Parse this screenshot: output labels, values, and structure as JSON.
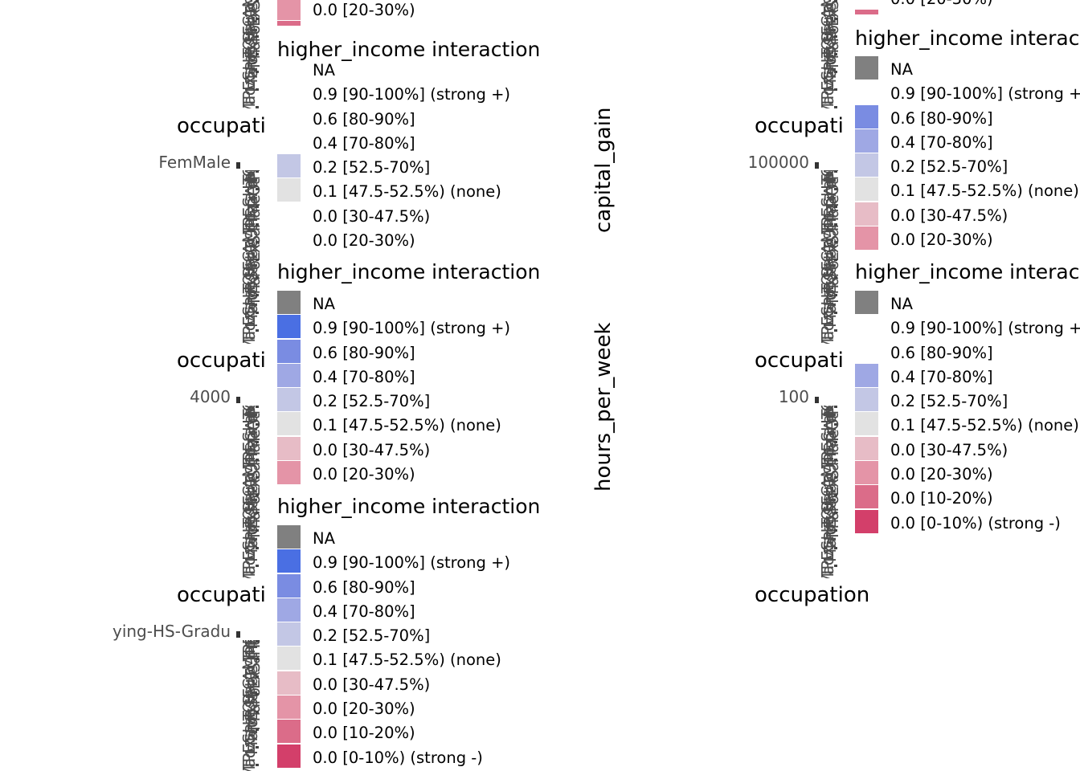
{
  "chart_data": {
    "type": "heatmap",
    "title": "",
    "legend": {
      "title": "higher_income interaction",
      "entries": [
        {
          "label": "NA",
          "color": "#808080"
        },
        {
          "label": "0.9 [90-100%] (strong +)",
          "color": "#4a6fe3"
        },
        {
          "label": "0.6 [80-90%]",
          "color": "#7a8ce2"
        },
        {
          "label": "0.4 [70-80%]",
          "color": "#9fa8e4"
        },
        {
          "label": "0.2 [52.5-70%]",
          "color": "#c3c7e5"
        },
        {
          "label": "0.1 [47.5-52.5%) (none)",
          "color": "#e2e2e2"
        },
        {
          "label": "0.0 [30-47.5%)",
          "color": "#e7bcc6"
        },
        {
          "label": "0.0 [20-30%)",
          "color": "#e494a7"
        },
        {
          "label": "0.0 [10-20%)",
          "color": "#db6c89"
        },
        {
          "label": "0.0 [0-10%) (strong -)",
          "color": "#d33f6a"
        }
      ]
    },
    "facets": [
      {
        "id": "top-left",
        "xlabel": "occupation",
        "strip": "",
        "x_tick": "",
        "legend_visible": [
          7,
          8
        ]
      },
      {
        "id": "top-right",
        "xlabel": "occupation",
        "strip": "",
        "x_tick": "",
        "legend_visible": [
          8
        ]
      },
      {
        "id": "sex",
        "xlabel": "occupation",
        "strip": "",
        "x_tick": "FemMale",
        "legend_visible": [
          4,
          5
        ]
      },
      {
        "id": "capital-gain",
        "xlabel": "occupation",
        "strip": "capital_gain",
        "x_tick": "100000",
        "legend_visible": [
          0,
          2,
          3,
          4,
          5,
          6,
          7
        ]
      },
      {
        "id": "capital-loss",
        "xlabel": "occupation",
        "strip": "",
        "x_tick": "4000",
        "legend_visible": [
          0,
          1,
          2,
          3,
          4,
          5,
          6,
          7
        ]
      },
      {
        "id": "hours-per-week",
        "xlabel": "occupation",
        "strip": "hours_per_week",
        "x_tick": "100",
        "legend_visible": [
          0,
          3,
          4,
          5,
          6,
          7,
          8,
          9
        ]
      },
      {
        "id": "education",
        "xlabel": "occupation",
        "strip": "",
        "x_tick": "ying-HS-Gradu",
        "legend_visible": [
          0,
          1,
          2,
          3,
          4,
          5,
          6,
          7,
          8,
          9
        ]
      },
      {
        "id": "bottom-right",
        "xlabel": "occupation",
        "strip": "",
        "x_tick": "",
        "legend_visible": []
      }
    ]
  }
}
